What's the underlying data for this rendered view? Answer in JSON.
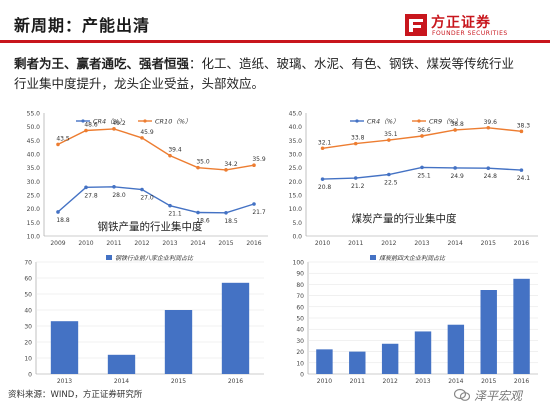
{
  "header": {
    "title": "新周期：产能出清",
    "logo_cn": "方正证券",
    "logo_en": "FOUNDER SECURITIES"
  },
  "body": {
    "lead": "剩者为王、赢者通吃、强者恒强",
    "rest_line1": "：化工、造纸、玻璃、水泥、有色、钢铁、煤炭等传统行业",
    "line2": "行业集中度提升，龙头企业受益，头部效应。"
  },
  "footer": {
    "source": "资料来源：WIND，方正证券研究所",
    "watermark": "泽平宏观"
  },
  "colors": {
    "accent": "#c8161d",
    "cr_short": "#4472c4",
    "cr_long": "#ed7d31",
    "bar": "#4472c4"
  },
  "chart_data": [
    {
      "type": "line",
      "caption": "钢铁产量的行业集中度",
      "x": [
        "2009",
        "2010",
        "2011",
        "2012",
        "2013",
        "2014",
        "2015",
        "2016"
      ],
      "yticks": [
        "10.0",
        "15.0",
        "20.0",
        "25.0",
        "30.0",
        "35.0",
        "40.0",
        "45.0",
        "50.0",
        "55.0"
      ],
      "ylim": [
        10,
        55
      ],
      "legend_position": "top",
      "series": [
        {
          "name": "CR4（%）",
          "values": [
            18.8,
            27.8,
            28.0,
            27.0,
            21.1,
            18.6,
            18.5,
            21.7
          ],
          "labels": [
            "18.8",
            "27.8",
            "28.0",
            "27.0",
            "21.1",
            "18.6",
            "18.5",
            "21.7"
          ]
        },
        {
          "name": "CR10（%）",
          "values": [
            43.5,
            48.6,
            49.2,
            45.9,
            39.4,
            35.0,
            34.2,
            35.9
          ],
          "labels": [
            "43.5",
            "48.6",
            "49.2",
            "45.9",
            "39.4",
            "35.0",
            "34.2",
            "35.9"
          ]
        }
      ]
    },
    {
      "type": "line",
      "caption": "煤炭产量的行业集中度",
      "x": [
        "2010",
        "2011",
        "2012",
        "2013",
        "2014",
        "2015",
        "2016"
      ],
      "yticks": [
        "0.0",
        "5.0",
        "10.0",
        "15.0",
        "20.0",
        "25.0",
        "30.0",
        "35.0",
        "40.0",
        "45.0"
      ],
      "ylim": [
        0,
        45
      ],
      "legend_position": "top",
      "series": [
        {
          "name": "CR4（%）",
          "values": [
            20.8,
            21.2,
            22.5,
            25.1,
            24.9,
            24.8,
            24.1
          ],
          "labels": [
            "20.8",
            "21.2",
            "22.5",
            "25.1",
            "24.9",
            "24.8",
            "24.1"
          ]
        },
        {
          "name": "CR9（%）",
          "values": [
            32.1,
            33.8,
            35.1,
            36.6,
            38.8,
            39.6,
            38.3
          ],
          "labels": [
            "32.1",
            "33.8",
            "35.1",
            "36.6",
            "38.8",
            "39.6",
            "38.3"
          ]
        }
      ]
    },
    {
      "type": "bar",
      "categories": [
        "2013",
        "2014",
        "2015",
        "2016"
      ],
      "yticks": [
        "0",
        "10",
        "20",
        "30",
        "40",
        "50",
        "60",
        "70"
      ],
      "ylim": [
        0,
        70
      ],
      "legend_position": "top",
      "series": [
        {
          "name": "钢铁行业前八家企业利润占比",
          "values": [
            33,
            12,
            40,
            57
          ]
        }
      ]
    },
    {
      "type": "bar",
      "categories": [
        "2010",
        "2011",
        "2012",
        "2013",
        "2014",
        "2015",
        "2016"
      ],
      "yticks": [
        "0",
        "10",
        "20",
        "30",
        "40",
        "50",
        "60",
        "70",
        "80",
        "90",
        "100"
      ],
      "ylim": [
        0,
        100
      ],
      "legend_position": "top",
      "series": [
        {
          "name": "煤炭前四大企业利润占比",
          "values": [
            22,
            20,
            27,
            38,
            44,
            75,
            85
          ]
        }
      ]
    }
  ]
}
